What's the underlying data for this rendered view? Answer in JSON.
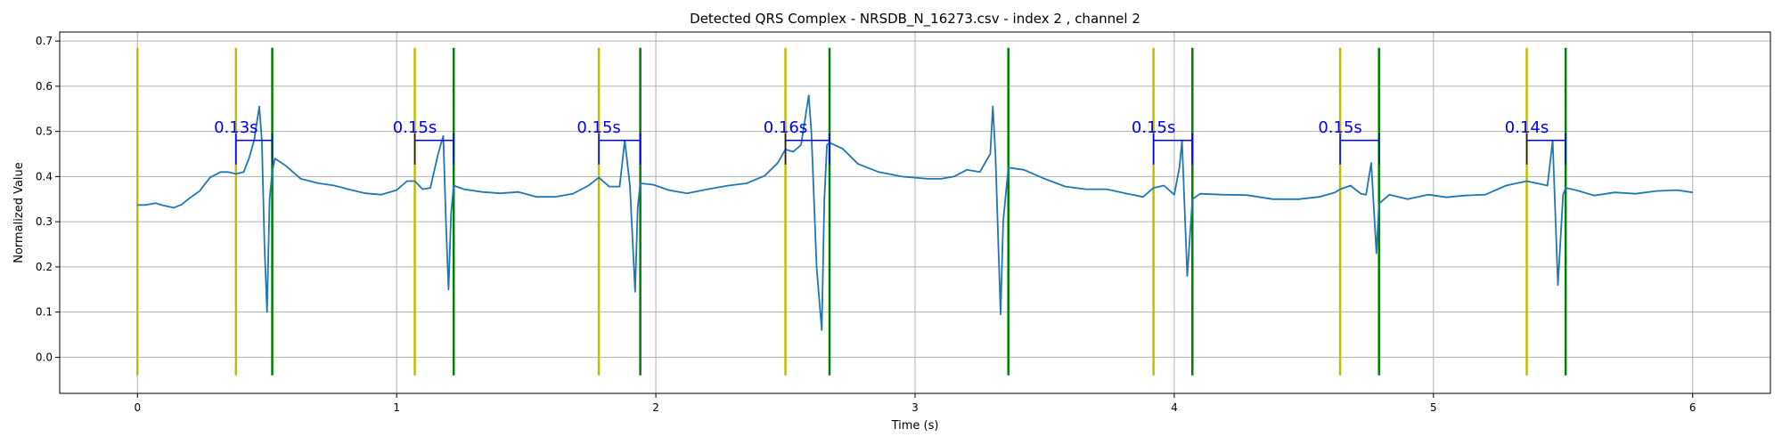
{
  "chart_data": {
    "type": "line",
    "title": "Detected QRS Complex - NRSDB_N_16273.csv - index 2 , channel 2",
    "xlabel": "Time (s)",
    "ylabel": "Normalized Value",
    "xlim": [
      -0.3,
      6.3
    ],
    "ylim": [
      -0.08,
      0.72
    ],
    "xticks": [
      0,
      1,
      2,
      3,
      4,
      5,
      6
    ],
    "xtick_labels": [
      "0",
      "1",
      "2",
      "3",
      "4",
      "5",
      "6"
    ],
    "yticks": [
      0.0,
      0.1,
      0.2,
      0.3,
      0.4,
      0.5,
      0.6,
      0.7
    ],
    "ytick_labels": [
      "0.0",
      "0.1",
      "0.2",
      "0.3",
      "0.4",
      "0.5",
      "0.6",
      "0.7"
    ],
    "grid": true,
    "colors": {
      "signal": "#1f77b4",
      "onset": "#bfbf00",
      "offset": "#008000",
      "annotation": "#0000ff"
    },
    "vline_range": [
      -0.04,
      0.685
    ],
    "onset_lines": [
      0.0,
      0.38,
      1.07,
      1.78,
      2.5,
      3.92,
      4.64,
      5.36
    ],
    "offset_lines": [
      0.52,
      1.22,
      1.94,
      2.67,
      3.36,
      4.07,
      4.79,
      5.51
    ],
    "qrs_durations": [
      {
        "start": 0.38,
        "end": 0.52,
        "label": "0.13s"
      },
      {
        "start": 1.07,
        "end": 1.22,
        "label": "0.15s"
      },
      {
        "start": 1.78,
        "end": 1.94,
        "label": "0.15s"
      },
      {
        "start": 2.5,
        "end": 2.67,
        "label": "0.16s"
      },
      {
        "start": 3.92,
        "end": 4.07,
        "label": "0.15s"
      },
      {
        "start": 4.64,
        "end": 4.79,
        "label": "0.15s"
      },
      {
        "start": 5.36,
        "end": 5.51,
        "label": "0.14s"
      }
    ],
    "bracket_y": 0.48,
    "series": [
      {
        "x": [
          0.0,
          0.03,
          0.07,
          0.1,
          0.14,
          0.17,
          0.2,
          0.24,
          0.28,
          0.32,
          0.35,
          0.38,
          0.41,
          0.43,
          0.45,
          0.47,
          0.48,
          0.49,
          0.5,
          0.51,
          0.52,
          0.53,
          0.57,
          0.63,
          0.7,
          0.76,
          0.82,
          0.88,
          0.94,
          1.0,
          1.04,
          1.07,
          1.1,
          1.13,
          1.16,
          1.18,
          1.19,
          1.2,
          1.21,
          1.22,
          1.26,
          1.33,
          1.4,
          1.47,
          1.54,
          1.61,
          1.68,
          1.74,
          1.78,
          1.82,
          1.86,
          1.88,
          1.9,
          1.92,
          1.93,
          1.94,
          1.99,
          2.05,
          2.12,
          2.2,
          2.28,
          2.35,
          2.42,
          2.47,
          2.5,
          2.53,
          2.56,
          2.59,
          2.6,
          2.62,
          2.64,
          2.65,
          2.66,
          2.67,
          2.72,
          2.78,
          2.86,
          2.95,
          3.05,
          3.1,
          3.15,
          3.2,
          3.25,
          3.29,
          3.3,
          3.31,
          3.33,
          3.34,
          3.36,
          3.42,
          3.5,
          3.58,
          3.66,
          3.74,
          3.82,
          3.88,
          3.92,
          3.96,
          4.0,
          4.02,
          4.03,
          4.05,
          4.07,
          4.1,
          4.18,
          4.28,
          4.38,
          4.48,
          4.56,
          4.62,
          4.64,
          4.68,
          4.72,
          4.74,
          4.76,
          4.78,
          4.79,
          4.83,
          4.9,
          4.98,
          5.05,
          5.12,
          5.2,
          5.28,
          5.36,
          5.4,
          5.44,
          5.46,
          5.48,
          5.5,
          5.51,
          5.55,
          5.62,
          5.7,
          5.78,
          5.86,
          5.94,
          6.0
        ],
        "y": [
          0.337,
          0.337,
          0.341,
          0.336,
          0.331,
          0.338,
          0.352,
          0.368,
          0.398,
          0.41,
          0.41,
          0.406,
          0.41,
          0.44,
          0.48,
          0.555,
          0.48,
          0.25,
          0.1,
          0.35,
          0.41,
          0.44,
          0.425,
          0.395,
          0.385,
          0.38,
          0.371,
          0.363,
          0.36,
          0.37,
          0.39,
          0.39,
          0.372,
          0.375,
          0.45,
          0.49,
          0.3,
          0.15,
          0.32,
          0.38,
          0.372,
          0.366,
          0.363,
          0.366,
          0.355,
          0.355,
          0.362,
          0.38,
          0.398,
          0.378,
          0.378,
          0.48,
          0.38,
          0.145,
          0.33,
          0.385,
          0.382,
          0.37,
          0.363,
          0.372,
          0.38,
          0.385,
          0.402,
          0.43,
          0.46,
          0.455,
          0.47,
          0.58,
          0.5,
          0.2,
          0.06,
          0.35,
          0.47,
          0.475,
          0.462,
          0.428,
          0.41,
          0.4,
          0.395,
          0.395,
          0.4,
          0.415,
          0.41,
          0.45,
          0.555,
          0.45,
          0.095,
          0.3,
          0.42,
          0.415,
          0.395,
          0.378,
          0.372,
          0.372,
          0.362,
          0.355,
          0.375,
          0.38,
          0.36,
          0.42,
          0.48,
          0.18,
          0.35,
          0.362,
          0.36,
          0.359,
          0.35,
          0.35,
          0.355,
          0.365,
          0.372,
          0.38,
          0.362,
          0.36,
          0.43,
          0.23,
          0.34,
          0.36,
          0.35,
          0.36,
          0.354,
          0.358,
          0.36,
          0.38,
          0.39,
          0.385,
          0.38,
          0.48,
          0.16,
          0.36,
          0.375,
          0.37,
          0.358,
          0.365,
          0.362,
          0.368,
          0.37,
          0.365
        ]
      }
    ]
  }
}
